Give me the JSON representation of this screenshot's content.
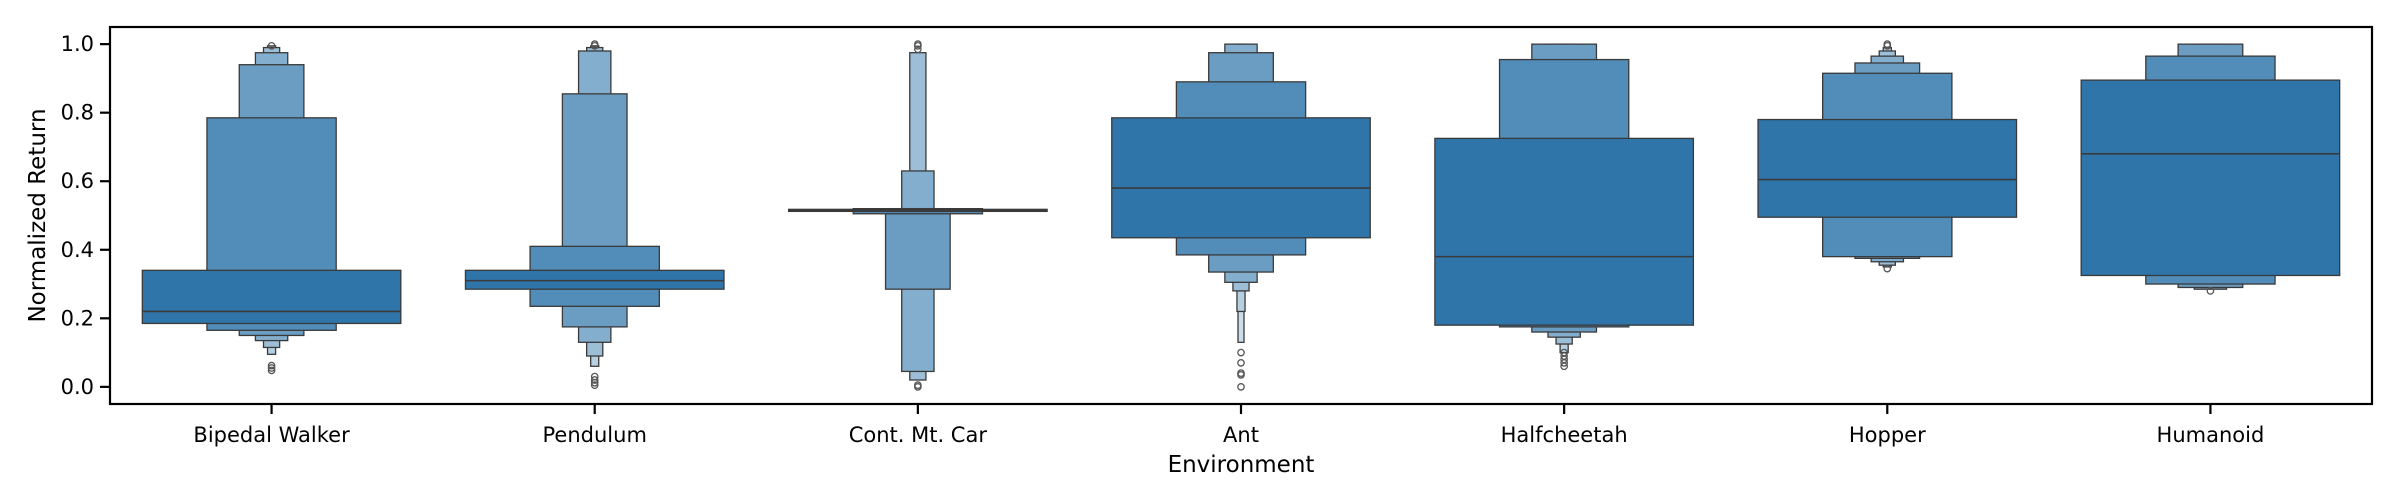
{
  "chart_data": {
    "type": "boxen",
    "xlabel": "Environment",
    "ylabel": "Normalized Return",
    "ylim": [
      -0.05,
      1.05
    ],
    "yticks": [
      "0.0",
      "0.2",
      "0.4",
      "0.6",
      "0.8",
      "1.0"
    ],
    "grid": false,
    "legend": "none",
    "color": "#2f75aa",
    "edge_color": "#3a3a3a",
    "categories": [
      "Bipedal Walker",
      "Pendulum",
      "Cont. Mt. Car",
      "Ant",
      "Halfcheetah",
      "Hopper",
      "Humanoid"
    ],
    "series": [
      {
        "category": "Bipedal Walker",
        "median": 0.22,
        "levels": [
          {
            "low": 0.185,
            "high": 0.34
          },
          {
            "low": 0.165,
            "high": 0.785
          },
          {
            "low": 0.15,
            "high": 0.94
          },
          {
            "low": 0.135,
            "high": 0.975
          },
          {
            "low": 0.115,
            "high": 0.99
          },
          {
            "low": 0.095,
            "high": 0.995
          }
        ],
        "outliers": [
          0.048,
          0.055,
          0.062,
          0.995
        ]
      },
      {
        "category": "Pendulum",
        "median": 0.31,
        "levels": [
          {
            "low": 0.285,
            "high": 0.34
          },
          {
            "low": 0.235,
            "high": 0.41
          },
          {
            "low": 0.175,
            "high": 0.855
          },
          {
            "low": 0.13,
            "high": 0.98
          },
          {
            "low": 0.09,
            "high": 0.99
          },
          {
            "low": 0.06,
            "high": 0.995
          }
        ],
        "outliers": [
          0.005,
          0.012,
          0.02,
          0.03,
          0.995,
          1.0
        ]
      },
      {
        "category": "Cont. Mt. Car",
        "median": 0.515,
        "levels": [
          {
            "low": 0.512,
            "high": 0.518
          },
          {
            "low": 0.505,
            "high": 0.52
          },
          {
            "low": 0.285,
            "high": 0.52
          },
          {
            "low": 0.045,
            "high": 0.63
          },
          {
            "low": 0.02,
            "high": 0.975
          }
        ],
        "outliers": [
          0.0,
          0.005,
          0.985,
          0.995,
          1.0
        ]
      },
      {
        "category": "Ant",
        "median": 0.58,
        "levels": [
          {
            "low": 0.435,
            "high": 0.785
          },
          {
            "low": 0.385,
            "high": 0.89
          },
          {
            "low": 0.335,
            "high": 0.975
          },
          {
            "low": 0.305,
            "high": 1.0
          },
          {
            "low": 0.28,
            "high": 1.0
          },
          {
            "low": 0.22,
            "high": 1.0
          },
          {
            "low": 0.13,
            "high": 1.0
          }
        ],
        "outliers": [
          0.0,
          0.035,
          0.04,
          0.07,
          0.1
        ]
      },
      {
        "category": "Halfcheetah",
        "median": 0.38,
        "levels": [
          {
            "low": 0.18,
            "high": 0.725
          },
          {
            "low": 0.175,
            "high": 0.955
          },
          {
            "low": 0.16,
            "high": 1.0
          },
          {
            "low": 0.145,
            "high": 1.0
          },
          {
            "low": 0.125,
            "high": 1.0
          },
          {
            "low": 0.1,
            "high": 1.0
          }
        ],
        "outliers": [
          0.06,
          0.07,
          0.08,
          0.09,
          0.1
        ]
      },
      {
        "category": "Hopper",
        "median": 0.605,
        "levels": [
          {
            "low": 0.495,
            "high": 0.78
          },
          {
            "low": 0.38,
            "high": 0.915
          },
          {
            "low": 0.375,
            "high": 0.945
          },
          {
            "low": 0.365,
            "high": 0.965
          },
          {
            "low": 0.355,
            "high": 0.98
          },
          {
            "low": 0.35,
            "high": 0.99
          }
        ],
        "outliers": [
          0.345,
          0.995,
          1.0
        ]
      },
      {
        "category": "Humanoid",
        "median": 0.68,
        "levels": [
          {
            "low": 0.325,
            "high": 0.895
          },
          {
            "low": 0.3,
            "high": 0.965
          },
          {
            "low": 0.29,
            "high": 1.0
          },
          {
            "low": 0.285,
            "high": 1.0
          }
        ],
        "outliers": [
          0.28
        ]
      }
    ]
  }
}
